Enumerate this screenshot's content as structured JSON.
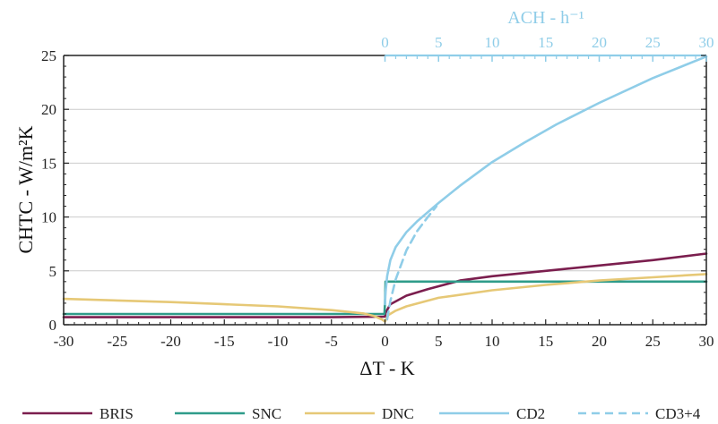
{
  "chart_data": {
    "type": "line",
    "xlabel": "ΔT - K",
    "ylabel": "CHTC - W/m²K",
    "top_xlabel": "ACH - h⁻¹",
    "xlim": [
      -30,
      30
    ],
    "ylim": [
      0,
      25
    ],
    "top_xlim": [
      0,
      30
    ],
    "x_ticks": [
      -30,
      -25,
      -20,
      -15,
      -10,
      -5,
      0,
      5,
      10,
      15,
      20,
      25,
      30
    ],
    "y_ticks": [
      0,
      5,
      10,
      15,
      20,
      25
    ],
    "top_x_ticks": [
      0,
      5,
      10,
      15,
      20,
      25,
      30
    ],
    "grid": "horizontal",
    "legend_position": "bottom",
    "colors": {
      "BRIS": "#7b1e4e",
      "SNC": "#2f9c8a",
      "DNC": "#e6c876",
      "CD2": "#8fcde8",
      "CD3+4": "#8fcde8",
      "axis": "#222222",
      "grid": "#cccccc"
    },
    "series": [
      {
        "name": "BRIS",
        "axis": "bottom",
        "style": "solid",
        "x": [
          -30,
          -20,
          -10,
          -5,
          0,
          0.05,
          0.5,
          2,
          4,
          7,
          10,
          15,
          20,
          25,
          30
        ],
        "y": [
          0.7,
          0.7,
          0.7,
          0.7,
          0.75,
          1.1,
          1.9,
          2.7,
          3.3,
          4.1,
          4.5,
          5.0,
          5.5,
          6.0,
          6.6
        ]
      },
      {
        "name": "SNC",
        "axis": "bottom",
        "style": "solid",
        "x": [
          -30,
          -20,
          -10,
          -5,
          -0.05,
          0,
          0.05,
          5,
          10,
          15,
          20,
          25,
          30
        ],
        "y": [
          1.0,
          1.0,
          1.0,
          1.0,
          1.0,
          2.0,
          4.0,
          4.0,
          4.0,
          4.0,
          4.0,
          4.0,
          4.0
        ]
      },
      {
        "name": "DNC",
        "axis": "bottom",
        "style": "solid",
        "x": [
          -30,
          -25,
          -20,
          -15,
          -10,
          -5,
          -2,
          -1,
          -0.3,
          0,
          0.3,
          1,
          2,
          5,
          10,
          15,
          20,
          25,
          30
        ],
        "y": [
          2.4,
          2.25,
          2.1,
          1.9,
          1.7,
          1.35,
          1.05,
          0.8,
          0.5,
          0.3,
          0.9,
          1.3,
          1.7,
          2.5,
          3.2,
          3.7,
          4.1,
          4.4,
          4.7
        ]
      },
      {
        "name": "CD2",
        "axis": "top",
        "style": "solid",
        "x": [
          0,
          0.05,
          0.2,
          0.5,
          1,
          2,
          3,
          5,
          7,
          10,
          13,
          16,
          20,
          25,
          30
        ],
        "y": [
          1.9,
          3.0,
          4.5,
          6.0,
          7.2,
          8.6,
          9.6,
          11.3,
          12.9,
          15.1,
          16.9,
          18.6,
          20.6,
          22.9,
          24.9
        ]
      },
      {
        "name": "CD3+4",
        "axis": "top",
        "style": "dashed",
        "x": [
          0.2,
          0.5,
          1,
          2,
          3,
          4,
          4.8
        ],
        "y": [
          0.5,
          2.2,
          4.2,
          6.9,
          8.7,
          10.0,
          11.0
        ]
      }
    ]
  }
}
